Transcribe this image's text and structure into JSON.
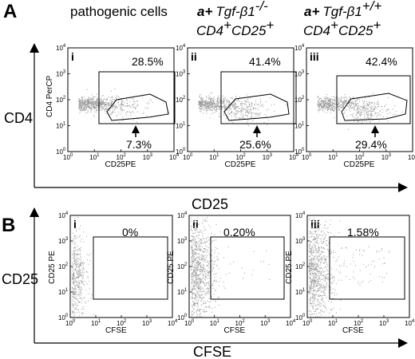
{
  "panels": [
    {
      "letter": "A"
    },
    {
      "letter": "B"
    }
  ],
  "columns": [
    {
      "title": "pathogenic cells"
    },
    {
      "title_prefix": "a+",
      "title_gene": "Tgf-β1",
      "title_gene_sup": "-/-",
      "line2_main": "CD4",
      "line2_sup1": "+",
      "line2_mid": "CD25",
      "line2_sup2": "+"
    },
    {
      "title_prefix": "a+",
      "title_gene": "Tgf-β1",
      "title_gene_sup": "+/+",
      "line2_main": "CD4",
      "line2_sup1": "+",
      "line2_mid": "CD25",
      "line2_sup2": "+"
    }
  ],
  "row_labels": {
    "A_y": "CD4",
    "A_x": "CD25",
    "B_y": "CD25",
    "B_x": "CFSE"
  },
  "colors": {
    "dots": "#9a9a9a",
    "ink": "#000000",
    "background": "#ffffff"
  },
  "chart_data": [
    {
      "type": "scatter",
      "panel": "A",
      "roman": "i",
      "xlabel": "CD25PE",
      "ylabel": "CD4 PerCP",
      "xscale": "log",
      "yscale": "log",
      "xlim": [
        1,
        10000
      ],
      "ylim": [
        1,
        10000
      ],
      "xticks": [
        "10",
        "10",
        "10",
        "10",
        "10"
      ],
      "tick_exponents": [
        "0",
        "1",
        "2",
        "3",
        "4"
      ],
      "gates": [
        {
          "label": "28.5%",
          "shape": "rectangle"
        },
        {
          "label": "7.3%",
          "shape": "polygon",
          "arrow": true
        }
      ]
    },
    {
      "type": "scatter",
      "panel": "A",
      "roman": "ii",
      "xlabel": "CD25PE",
      "ylabel": "",
      "xscale": "log",
      "yscale": "log",
      "xlim": [
        1,
        10000
      ],
      "ylim": [
        1,
        10000
      ],
      "xticks": [
        "10",
        "10",
        "10",
        "10",
        "10"
      ],
      "tick_exponents": [
        "0",
        "1",
        "2",
        "3",
        "4"
      ],
      "gates": [
        {
          "label": "41.4%",
          "shape": "rectangle"
        },
        {
          "label": "25.6%",
          "shape": "polygon",
          "arrow": true
        }
      ]
    },
    {
      "type": "scatter",
      "panel": "A",
      "roman": "iii",
      "xlabel": "CD25PE",
      "ylabel": "",
      "xscale": "log",
      "yscale": "log",
      "xlim": [
        1,
        10000
      ],
      "ylim": [
        1,
        10000
      ],
      "xticks": [
        "10",
        "10",
        "10",
        "10",
        "10"
      ],
      "tick_exponents": [
        "0",
        "1",
        "2",
        "3",
        "4"
      ],
      "gates": [
        {
          "label": "42.4%",
          "shape": "rectangle"
        },
        {
          "label": "29.4%",
          "shape": "polygon",
          "arrow": true
        }
      ]
    },
    {
      "type": "scatter",
      "panel": "B",
      "roman": "i",
      "xlabel": "CFSE",
      "ylabel": "CD25 PE",
      "xscale": "log",
      "yscale": "log",
      "xlim": [
        1,
        10000
      ],
      "ylim": [
        1,
        10000
      ],
      "xticks": [
        "10",
        "10",
        "10",
        "10",
        "10"
      ],
      "tick_exponents": [
        "0",
        "1",
        "2",
        "3",
        "4"
      ],
      "gates": [
        {
          "label": "0%",
          "shape": "rectangle"
        }
      ]
    },
    {
      "type": "scatter",
      "panel": "B",
      "roman": "ii",
      "xlabel": "CFSE",
      "ylabel": "CD25 PE",
      "xscale": "log",
      "yscale": "log",
      "xlim": [
        1,
        10000
      ],
      "ylim": [
        1,
        10000
      ],
      "xticks": [
        "10",
        "10",
        "10",
        "10",
        "10"
      ],
      "tick_exponents": [
        "0",
        "1",
        "2",
        "3",
        "4"
      ],
      "gates": [
        {
          "label": "0.20%",
          "shape": "rectangle"
        }
      ]
    },
    {
      "type": "scatter",
      "panel": "B",
      "roman": "iii",
      "xlabel": "CFSE",
      "ylabel": "CD25 PE",
      "xscale": "log",
      "yscale": "log",
      "xlim": [
        1,
        10000
      ],
      "ylim": [
        1,
        10000
      ],
      "xticks": [
        "10",
        "10",
        "10",
        "10",
        "10"
      ],
      "tick_exponents": [
        "0",
        "1",
        "2",
        "3",
        "4"
      ],
      "gates": [
        {
          "label": "1.58%",
          "shape": "rectangle"
        }
      ]
    }
  ]
}
